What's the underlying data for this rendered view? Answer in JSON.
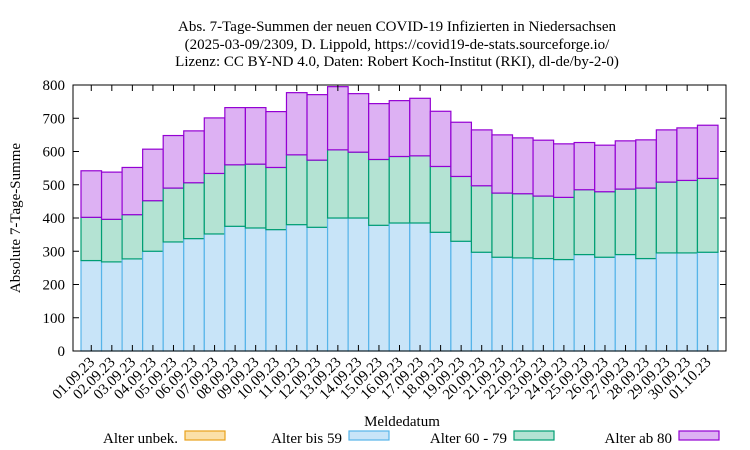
{
  "chart_data": {
    "type": "bar",
    "stacked": true,
    "title_lines": [
      "Abs. 7-Tage-Summen der neuen COVID-19 Infizierten in Niedersachsen",
      "(2025-03-09/2309, D. Lippold, https://covid19-de-stats.sourceforge.io/",
      "Lizenz: CC BY-ND 4.0, Daten: Robert Koch-Institut (RKI), dl-de/by-2-0)"
    ],
    "xlabel": "Meldedatum",
    "ylabel": "Absolute 7-Tage-Summe",
    "ylim": [
      0,
      800
    ],
    "yticks": [
      "0",
      "100",
      "200",
      "300",
      "400",
      "500",
      "600",
      "700",
      "800"
    ],
    "grid": false,
    "legend_position": "bottom",
    "categories": [
      "01.09.23",
      "02.09.23",
      "03.09.23",
      "04.09.23",
      "05.09.23",
      "06.09.23",
      "07.09.23",
      "08.09.23",
      "09.09.23",
      "10.09.23",
      "11.09.23",
      "12.09.23",
      "13.09.23",
      "14.09.23",
      "15.09.23",
      "16.09.23",
      "17.09.23",
      "18.09.23",
      "19.09.23",
      "20.09.23",
      "21.09.23",
      "22.09.23",
      "23.09.23",
      "24.09.23",
      "25.09.23",
      "26.09.23",
      "27.09.23",
      "28.09.23",
      "29.09.23",
      "30.09.23",
      "01.10.23"
    ],
    "series": [
      {
        "name": "Alter unbek.",
        "fill": "#fbe0a8",
        "stroke": "#e8a21c",
        "values": [
          0,
          0,
          0,
          0,
          0,
          0,
          0,
          0,
          0,
          0,
          0,
          0,
          0,
          0,
          0,
          0,
          0,
          0,
          0,
          0,
          0,
          0,
          0,
          0,
          0,
          0,
          0,
          0,
          0,
          0,
          0
        ]
      },
      {
        "name": "Alter bis 59",
        "fill": "#c8e4f8",
        "stroke": "#56b4e9",
        "values": [
          272,
          268,
          277,
          300,
          328,
          338,
          352,
          375,
          370,
          365,
          380,
          372,
          400,
          400,
          378,
          385,
          385,
          357,
          330,
          297,
          282,
          280,
          278,
          275,
          290,
          282,
          290,
          278,
          295,
          295,
          297
        ]
      },
      {
        "name": "Alter 60 - 79",
        "fill": "#b4e3d3",
        "stroke": "#009e73",
        "values": [
          130,
          128,
          133,
          152,
          162,
          168,
          182,
          185,
          192,
          187,
          210,
          202,
          205,
          198,
          198,
          200,
          202,
          198,
          195,
          200,
          193,
          193,
          188,
          187,
          195,
          197,
          197,
          212,
          213,
          218,
          222
        ]
      },
      {
        "name": "Alter ab 80",
        "fill": "#ddb1f3",
        "stroke": "#9400d3",
        "values": [
          140,
          142,
          142,
          155,
          158,
          156,
          167,
          172,
          170,
          168,
          187,
          197,
          190,
          176,
          168,
          168,
          173,
          166,
          163,
          168,
          175,
          168,
          168,
          161,
          142,
          140,
          145,
          145,
          157,
          158,
          160
        ]
      }
    ]
  }
}
